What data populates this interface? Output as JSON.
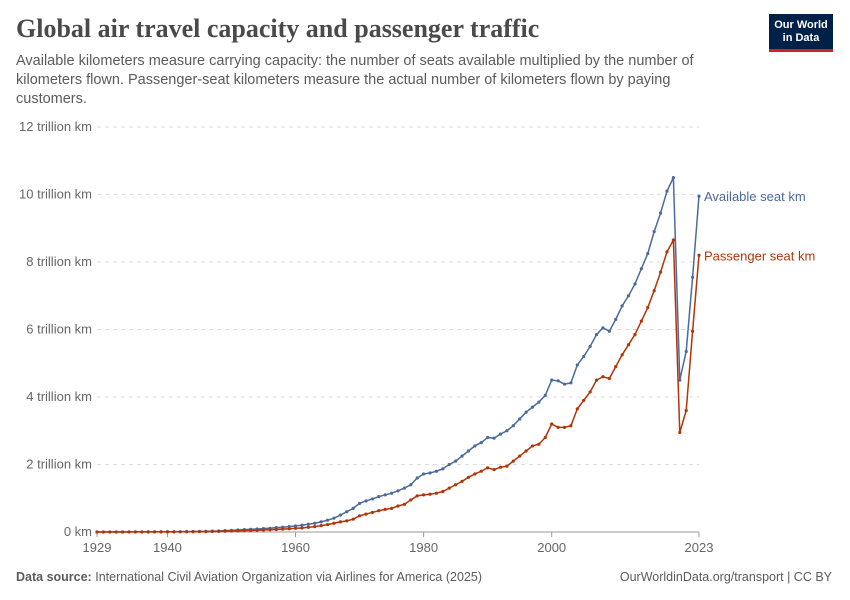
{
  "header": {
    "title": "Global air travel capacity and passenger traffic",
    "subtitle": "Available kilometers measure carrying capacity: the number of seats available multiplied by the number of kilometers flown. Passenger-seat kilometers measure the actual number of kilometers flown by paying customers.",
    "logo": "Our World in Data"
  },
  "footer": {
    "source_label": "Data source:",
    "source": "International Civil Aviation Organization via Airlines for America (2025)",
    "link": "OurWorldinData.org/transport | CC BY"
  },
  "chart_data": {
    "type": "line",
    "title": "Global air travel capacity and passenger traffic",
    "ylim": [
      0,
      12
    ],
    "xlim": [
      1929,
      2023
    ],
    "y_unit": "trillion km",
    "y_ticks": [
      0,
      2,
      4,
      6,
      8,
      10,
      12
    ],
    "y_tick_labels": [
      "0 km",
      "2 trillion km",
      "4 trillion km",
      "6 trillion km",
      "8 trillion km",
      "10 trillion km",
      "12 trillion km"
    ],
    "x_ticks": [
      1929,
      1940,
      1960,
      1980,
      2000,
      2023
    ],
    "x_tick_labels": [
      "1929",
      "1940",
      "1960",
      "1980",
      "2000",
      "2023"
    ],
    "grid": "horizontal dashed",
    "legend": "line-end labels right",
    "x": [
      1929,
      1930,
      1931,
      1932,
      1933,
      1934,
      1935,
      1936,
      1937,
      1938,
      1939,
      1940,
      1941,
      1942,
      1943,
      1944,
      1945,
      1946,
      1947,
      1948,
      1949,
      1950,
      1951,
      1952,
      1953,
      1954,
      1955,
      1956,
      1957,
      1958,
      1959,
      1960,
      1961,
      1962,
      1963,
      1964,
      1965,
      1966,
      1967,
      1968,
      1969,
      1970,
      1971,
      1972,
      1973,
      1974,
      1975,
      1976,
      1977,
      1978,
      1979,
      1980,
      1981,
      1982,
      1983,
      1984,
      1985,
      1986,
      1987,
      1988,
      1989,
      1990,
      1991,
      1992,
      1993,
      1994,
      1995,
      1996,
      1997,
      1998,
      1999,
      2000,
      2001,
      2002,
      2003,
      2004,
      2005,
      2006,
      2007,
      2008,
      2009,
      2010,
      2011,
      2012,
      2013,
      2014,
      2015,
      2016,
      2017,
      2018,
      2019,
      2020,
      2021,
      2022,
      2023
    ],
    "series": [
      {
        "name": "Available seat km",
        "color": "#4c6a9c",
        "values": [
          0.001,
          0.001,
          0.002,
          0.002,
          0.002,
          0.003,
          0.003,
          0.004,
          0.005,
          0.006,
          0.007,
          0.008,
          0.009,
          0.01,
          0.012,
          0.014,
          0.017,
          0.02,
          0.025,
          0.03,
          0.04,
          0.05,
          0.06,
          0.07,
          0.08,
          0.09,
          0.1,
          0.11,
          0.13,
          0.14,
          0.16,
          0.18,
          0.2,
          0.23,
          0.26,
          0.3,
          0.35,
          0.41,
          0.5,
          0.6,
          0.7,
          0.85,
          0.92,
          0.98,
          1.05,
          1.1,
          1.15,
          1.22,
          1.3,
          1.4,
          1.6,
          1.72,
          1.75,
          1.8,
          1.87,
          2.0,
          2.1,
          2.25,
          2.4,
          2.55,
          2.65,
          2.8,
          2.78,
          2.9,
          3.0,
          3.15,
          3.35,
          3.55,
          3.7,
          3.85,
          4.05,
          4.5,
          4.48,
          4.38,
          4.42,
          4.95,
          5.2,
          5.5,
          5.85,
          6.05,
          5.95,
          6.3,
          6.7,
          7.0,
          7.35,
          7.8,
          8.25,
          8.9,
          9.45,
          10.1,
          10.5,
          4.5,
          5.35,
          7.55,
          9.95
        ]
      },
      {
        "name": "Passenger seat km",
        "color": "#b13507",
        "values": [
          0.0006,
          0.0006,
          0.001,
          0.001,
          0.001,
          0.002,
          0.002,
          0.002,
          0.003,
          0.004,
          0.004,
          0.005,
          0.005,
          0.006,
          0.007,
          0.008,
          0.01,
          0.012,
          0.015,
          0.018,
          0.024,
          0.028,
          0.035,
          0.04,
          0.045,
          0.05,
          0.06,
          0.065,
          0.075,
          0.085,
          0.095,
          0.11,
          0.12,
          0.14,
          0.16,
          0.19,
          0.22,
          0.26,
          0.3,
          0.33,
          0.38,
          0.48,
          0.53,
          0.58,
          0.63,
          0.67,
          0.7,
          0.77,
          0.82,
          0.95,
          1.07,
          1.1,
          1.12,
          1.15,
          1.2,
          1.3,
          1.4,
          1.5,
          1.62,
          1.72,
          1.8,
          1.9,
          1.85,
          1.92,
          1.95,
          2.1,
          2.25,
          2.4,
          2.55,
          2.6,
          2.8,
          3.2,
          3.1,
          3.1,
          3.15,
          3.65,
          3.9,
          4.15,
          4.5,
          4.6,
          4.55,
          4.9,
          5.25,
          5.55,
          5.85,
          6.25,
          6.65,
          7.15,
          7.7,
          8.3,
          8.65,
          2.95,
          3.6,
          5.95,
          8.2
        ]
      }
    ]
  }
}
